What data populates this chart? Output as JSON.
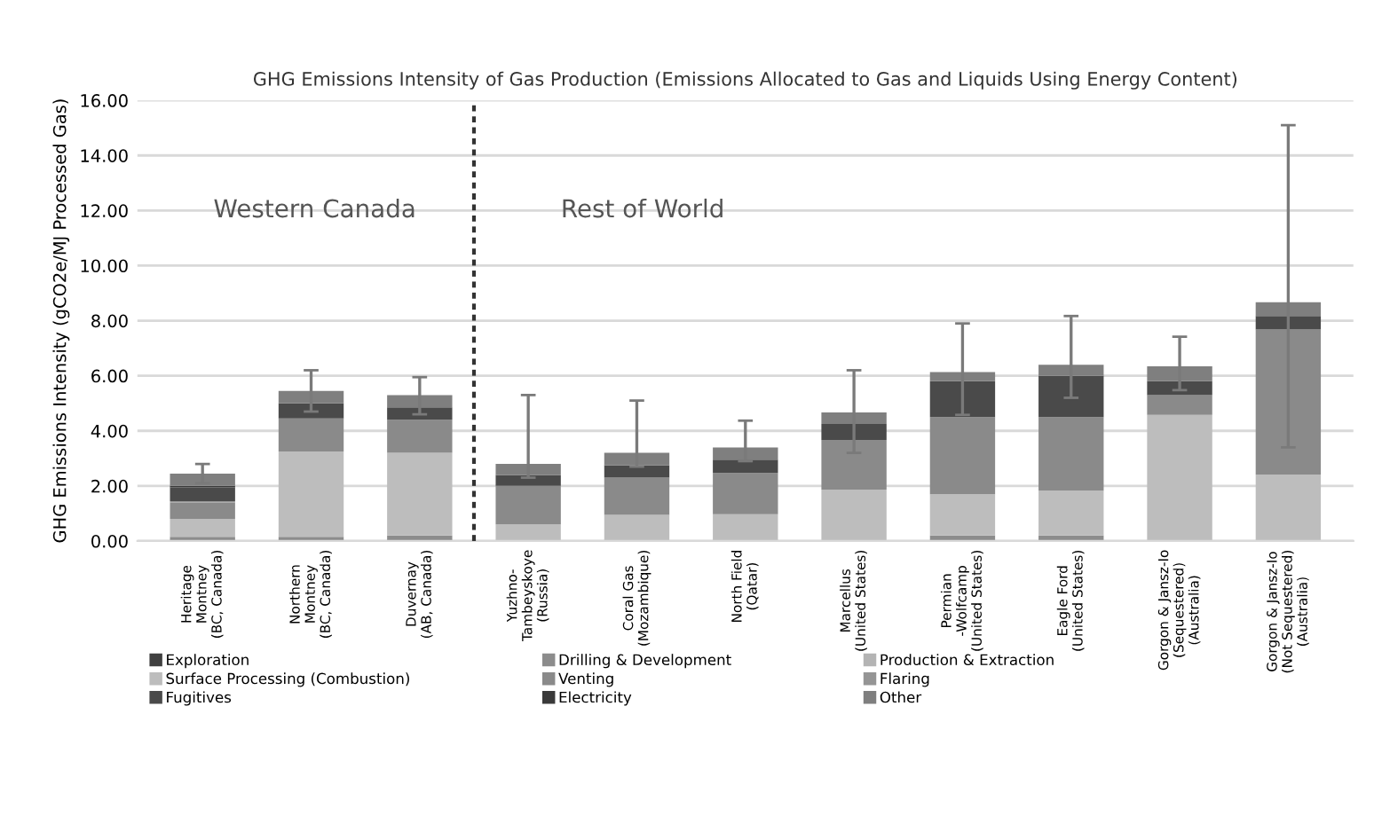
{
  "chart_data": {
    "type": "bar",
    "stacked": true,
    "title": "GHG Emissions Intensity of Gas Production (Emissions Allocated to Gas and Liquids Using Energy Content)",
    "ylabel": "GHG Emissions Intensity (gCO2e/MJ Processed Gas)",
    "categories": [
      "Heritage\nMontney\n(BC, Canada)",
      "Northern\nMontney\n(BC, Canada)",
      "Duvernay\n(AB, Canada)",
      "Yuzhno-\nTambeyskoye\n(Russia)",
      "Coral Gas\n(Mozambique)",
      "North Field\n(Qatar)",
      "Marcellus\n(United States)",
      "Permian\n-Wolfcamp\n(United States)",
      "Eagle Ford\n(United States)",
      "Gorgon & Jansz-Io\n(Sequestered)\n(Australia)",
      "Gorgon & Jansz-Io\n(Not Sequestered)\n(Australia)"
    ],
    "series": [
      {
        "name": "Exploration",
        "color": "#404040",
        "values": [
          0,
          0,
          0,
          0,
          0,
          0,
          0,
          0,
          0,
          0,
          0
        ]
      },
      {
        "name": "Drilling & Development",
        "color": "#8c8c8c",
        "values": [
          0.15,
          0.15,
          0.2,
          0,
          0,
          0,
          0,
          0.2,
          0.2,
          0,
          0
        ]
      },
      {
        "name": "Production & Extraction",
        "color": "#b4b4b4",
        "values": [
          null,
          0,
          0,
          0,
          0,
          0,
          0,
          0,
          0,
          0,
          0
        ]
      },
      {
        "name": "Surface Processing (Combustion)",
        "color": "#bdbdbd",
        "values": [
          0.65,
          3.1,
          3.0,
          0.6,
          0.95,
          0.97,
          1.87,
          1.5,
          1.63,
          4.58,
          2.41
        ]
      },
      {
        "name": "Venting",
        "color": "#8a8a8a",
        "values": [
          0.6,
          1.2,
          1.2,
          1.4,
          1.35,
          1.5,
          1.8,
          2.8,
          2.67,
          0.72,
          5.27
        ]
      },
      {
        "name": "Flaring",
        "color": "#959595",
        "values": [
          0.05,
          0,
          0,
          0,
          0,
          0,
          0,
          0,
          0,
          0,
          0
        ]
      },
      {
        "name": "Fugitives",
        "color": "#4a4a4a",
        "values": [
          0.5,
          0.55,
          0.45,
          0.4,
          0.45,
          0.48,
          0.58,
          1.3,
          1.5,
          0.5,
          0.49
        ]
      },
      {
        "name": "Electricity",
        "color": "#3a3a3a",
        "values": [
          0.05,
          0,
          0,
          0,
          0,
          0,
          0,
          0,
          0,
          0,
          0
        ]
      },
      {
        "name": "Other",
        "color": "#7f7f7f",
        "values": [
          0.45,
          0.45,
          0.45,
          0.4,
          0.45,
          0.45,
          0.42,
          0.33,
          0.4,
          0.54,
          0.5
        ],
        "errors": [
          [
            2.1,
            2.8
          ],
          [
            4.7,
            6.2
          ],
          [
            4.6,
            5.95
          ],
          [
            2.3,
            5.3
          ],
          [
            2.7,
            5.1
          ],
          [
            2.9,
            4.37
          ],
          [
            3.2,
            6.2
          ],
          [
            4.58,
            7.9
          ],
          [
            5.2,
            8.17
          ],
          [
            5.48,
            7.42
          ],
          [
            3.4,
            15.1
          ]
        ]
      }
    ],
    "ylim": [
      0,
      16
    ],
    "yticks": [
      {
        "value": 0,
        "label": "0.00"
      },
      {
        "value": 2,
        "label": "2.00"
      },
      {
        "value": 4,
        "label": "4.00"
      },
      {
        "value": 6,
        "label": "6.00"
      },
      {
        "value": 8,
        "label": "8.00"
      },
      {
        "value": 10,
        "label": "10.00"
      },
      {
        "value": 12,
        "label": "12.00"
      },
      {
        "value": 14,
        "label": "14.00"
      },
      {
        "value": 16,
        "label": "16.00"
      }
    ],
    "grid": "y",
    "legend": "bottom",
    "annotations": [
      "Western Canada",
      "Rest of World"
    ]
  }
}
